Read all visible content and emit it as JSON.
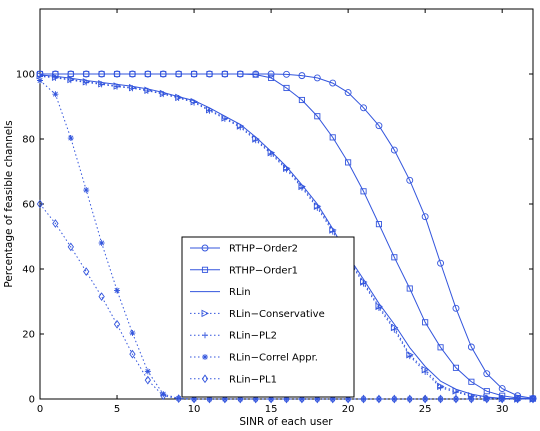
{
  "chart_data": {
    "type": "line",
    "title": "",
    "xlabel": "SINR of each user",
    "ylabel": "Percentage of feasible channels",
    "xlim": [
      0,
      32
    ],
    "ylim": [
      0,
      120
    ],
    "xticks": [
      0,
      5,
      10,
      15,
      20,
      25,
      30
    ],
    "yticks": [
      0,
      20,
      40,
      60,
      80,
      100
    ],
    "grid": false,
    "legend_position": "lower-center",
    "color": "#3355dd",
    "series": [
      {
        "name": "RTHP−Order2",
        "style": "solid",
        "marker": "circle",
        "x": [
          0,
          1,
          2,
          3,
          4,
          5,
          6,
          7,
          8,
          9,
          10,
          11,
          12,
          13,
          14,
          15,
          16,
          17,
          18,
          19,
          20,
          21,
          22,
          23,
          24,
          25,
          26,
          27,
          28,
          29,
          30,
          31,
          32
        ],
        "y": [
          100,
          100,
          100,
          100,
          100,
          100,
          100,
          100,
          100,
          100,
          100,
          100,
          100,
          100,
          100,
          100,
          99.9,
          99.5,
          98.8,
          97.2,
          94.3,
          89.6,
          84.1,
          76.6,
          67.3,
          56.1,
          41.8,
          27.9,
          16.0,
          7.8,
          3.2,
          1.0,
          0.2
        ]
      },
      {
        "name": "RTHP−Order1",
        "style": "solid",
        "marker": "square",
        "x": [
          0,
          1,
          2,
          3,
          4,
          5,
          6,
          7,
          8,
          9,
          10,
          11,
          12,
          13,
          14,
          15,
          16,
          17,
          18,
          19,
          20,
          21,
          22,
          23,
          24,
          25,
          26,
          27,
          28,
          29,
          30,
          31,
          32
        ],
        "y": [
          100,
          100,
          100,
          100,
          100,
          100,
          100,
          100,
          100,
          100,
          100,
          100,
          100,
          100,
          99.8,
          98.8,
          95.7,
          92.0,
          87.0,
          80.5,
          72.8,
          63.9,
          53.8,
          43.6,
          34.0,
          23.6,
          15.9,
          9.6,
          5.3,
          2.4,
          1.0,
          0.3,
          0.1
        ]
      },
      {
        "name": "RLin",
        "style": "solid",
        "marker": "none",
        "x": [
          0,
          1,
          2,
          3,
          4,
          5,
          6,
          7,
          8,
          9,
          10,
          11,
          12,
          13,
          14,
          15,
          16,
          17,
          18,
          19,
          20,
          21,
          22,
          23,
          24,
          25,
          26,
          27,
          28,
          29,
          30,
          31,
          32
        ],
        "y": [
          99.7,
          99.3,
          98.7,
          98.0,
          97.4,
          96.8,
          96.2,
          95.4,
          94.3,
          93.0,
          91.8,
          89.6,
          87.0,
          84.5,
          80.6,
          76.2,
          71.5,
          65.9,
          60.0,
          52.4,
          44.0,
          36.8,
          29.4,
          23.0,
          15.8,
          10.0,
          5.5,
          3.0,
          1.5,
          0.6,
          0.2,
          0.1,
          0
        ]
      },
      {
        "name": "RLin−Conservative",
        "style": "dotted",
        "marker": "triangle-right",
        "x": [
          0,
          1,
          2,
          3,
          4,
          5,
          6,
          7,
          8,
          9,
          10,
          11,
          12,
          13,
          14,
          15,
          16,
          17,
          18,
          19,
          20,
          21,
          22,
          23,
          24,
          25,
          26,
          27,
          28,
          29,
          30,
          31,
          32
        ],
        "y": [
          99.5,
          99.0,
          98.3,
          97.6,
          97.0,
          96.3,
          95.8,
          95.0,
          94.0,
          92.8,
          91.5,
          89.0,
          86.5,
          84.0,
          80.0,
          75.8,
          71.0,
          65.4,
          59.3,
          52.0,
          43.5,
          36.0,
          28.5,
          22.0,
          13.6,
          9.0,
          3.9,
          2.5,
          1.0,
          0.4,
          0.1,
          0,
          0
        ]
      },
      {
        "name": "RLin−PL2",
        "style": "dotted",
        "marker": "plus",
        "x": [
          0,
          1,
          2,
          3,
          4,
          5,
          6,
          7,
          8,
          9,
          10,
          11,
          12,
          13,
          14,
          15,
          16,
          17,
          18,
          19,
          20,
          21,
          22,
          23,
          24,
          25,
          26,
          27,
          28,
          29,
          30,
          31,
          32
        ],
        "y": [
          99.3,
          98.8,
          98.1,
          97.4,
          96.8,
          96.1,
          95.6,
          94.8,
          93.8,
          92.6,
          91.2,
          88.7,
          86.2,
          83.6,
          79.6,
          75.4,
          70.6,
          65.0,
          58.8,
          51.5,
          43.0,
          35.5,
          28.0,
          21.3,
          13.2,
          8.3,
          3.5,
          2.1,
          0.8,
          0.3,
          0.1,
          0,
          0
        ]
      },
      {
        "name": "RLin−Correl Appr.",
        "style": "dotted",
        "marker": "star",
        "x": [
          0,
          1,
          2,
          3,
          4,
          5,
          6,
          7,
          8,
          9,
          10,
          11,
          12,
          13,
          14,
          15,
          16,
          17,
          18,
          19,
          20,
          21,
          22,
          23,
          24,
          25,
          26,
          27,
          28,
          29,
          30,
          31,
          32
        ],
        "y": [
          98.0,
          93.8,
          80.3,
          64.3,
          48.0,
          33.4,
          20.3,
          8.5,
          1.5,
          0.2,
          0,
          0,
          0,
          0,
          0,
          0,
          0,
          0,
          0,
          0,
          0,
          0,
          0,
          0,
          0,
          0,
          0,
          0,
          0,
          0,
          0,
          0,
          0
        ]
      },
      {
        "name": "RLin−PL1",
        "style": "dotted",
        "marker": "diamond",
        "x": [
          0,
          1,
          2,
          3,
          4,
          5,
          6,
          7,
          8,
          9,
          10,
          11,
          12,
          13,
          14,
          15,
          16,
          17,
          18,
          19,
          20,
          21,
          22,
          23,
          24,
          25,
          26,
          27,
          28,
          29,
          30,
          31,
          32
        ],
        "y": [
          60.0,
          54.0,
          46.8,
          39.2,
          31.5,
          23.0,
          13.8,
          5.8,
          1.0,
          0.1,
          0,
          0,
          0,
          0,
          0,
          0,
          0,
          0,
          0,
          0,
          0,
          0,
          0,
          0,
          0,
          0,
          0,
          0,
          0,
          0,
          0,
          0,
          0
        ]
      }
    ]
  }
}
